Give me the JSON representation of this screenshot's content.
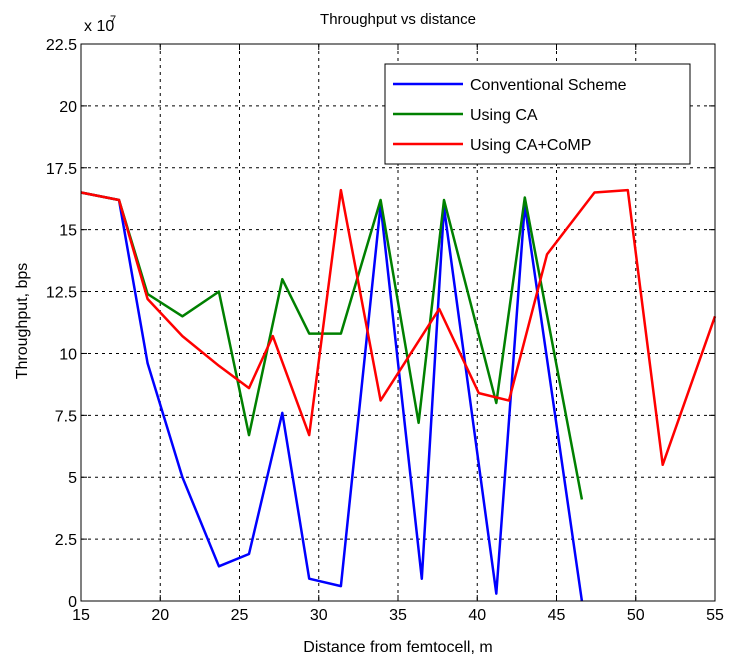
{
  "chart_data": {
    "type": "line",
    "title": "Throughput vs distance",
    "xlabel": "Distance from femtocell, m",
    "ylabel": "Throughput, bps",
    "y_multiplier_label": "x 10",
    "y_multiplier_exponent": "7",
    "xlim": [
      15,
      55
    ],
    "ylim": [
      0,
      22.5
    ],
    "x_ticks": [
      15,
      20,
      25,
      30,
      35,
      40,
      45,
      50,
      55
    ],
    "y_ticks": [
      0,
      2.5,
      5,
      7.5,
      10,
      12.5,
      15,
      17.5,
      20,
      22.5
    ],
    "x_tick_labels": [
      "15",
      "20",
      "25",
      "30",
      "35",
      "40",
      "45",
      "50",
      "55"
    ],
    "y_tick_labels": [
      "0",
      "2.5",
      "5",
      "7.5",
      "10",
      "12.5",
      "15",
      "17.5",
      "20",
      "22.5"
    ],
    "grid": true,
    "legend_position": "top-right",
    "series": [
      {
        "name": "Conventional Scheme",
        "color": "#0000ff",
        "points": [
          [
            15,
            16.5
          ],
          [
            17.4,
            16.2
          ],
          [
            19.2,
            9.6
          ],
          [
            21.4,
            5.0
          ],
          [
            23.7,
            1.4
          ],
          [
            25.6,
            1.9
          ],
          [
            27.7,
            7.6
          ],
          [
            29.4,
            0.9
          ],
          [
            31.4,
            0.6
          ],
          [
            33.9,
            16.0
          ],
          [
            36.5,
            0.9
          ],
          [
            37.9,
            15.9
          ],
          [
            41.2,
            0.3
          ],
          [
            43.0,
            16.0
          ],
          [
            46.6,
            0.0
          ]
        ]
      },
      {
        "name": "Using CA",
        "color": "#008000",
        "points": [
          [
            15,
            16.5
          ],
          [
            17.4,
            16.2
          ],
          [
            19.2,
            12.4
          ],
          [
            21.4,
            11.5
          ],
          [
            23.7,
            12.5
          ],
          [
            25.6,
            6.7
          ],
          [
            27.7,
            13.0
          ],
          [
            29.4,
            10.8
          ],
          [
            31.4,
            10.8
          ],
          [
            33.9,
            16.2
          ],
          [
            36.3,
            7.2
          ],
          [
            37.9,
            16.2
          ],
          [
            41.2,
            8.0
          ],
          [
            43.0,
            16.3
          ],
          [
            46.6,
            4.1
          ]
        ]
      },
      {
        "name": "Using CA+CoMP",
        "color": "#ff0000",
        "points": [
          [
            15,
            16.5
          ],
          [
            17.4,
            16.2
          ],
          [
            19.2,
            12.2
          ],
          [
            21.4,
            10.7
          ],
          [
            23.7,
            9.5
          ],
          [
            25.6,
            8.6
          ],
          [
            27.1,
            10.7
          ],
          [
            29.4,
            6.7
          ],
          [
            31.4,
            16.6
          ],
          [
            33.9,
            8.1
          ],
          [
            37.6,
            11.8
          ],
          [
            40.1,
            8.4
          ],
          [
            42.0,
            8.1
          ],
          [
            44.4,
            14.0
          ],
          [
            47.4,
            16.5
          ],
          [
            49.5,
            16.6
          ],
          [
            51.7,
            5.5
          ],
          [
            55,
            11.5
          ]
        ]
      }
    ]
  }
}
